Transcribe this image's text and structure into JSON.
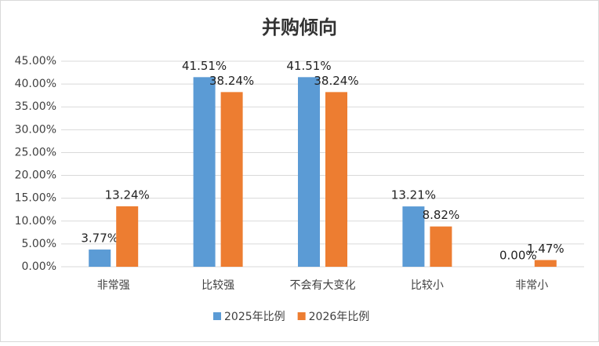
{
  "chart_data": {
    "type": "bar",
    "title": "并购倾向",
    "categories": [
      "非常强",
      "比较强",
      "不会有大变化",
      "比较小",
      "非常小"
    ],
    "series": [
      {
        "name": "2025年比例",
        "color": "#5b9bd5",
        "values": [
          3.77,
          41.51,
          41.51,
          13.21,
          0.0
        ],
        "value_labels": [
          "3.77%",
          "41.51%",
          "41.51%",
          "13.21%",
          "0.00%"
        ]
      },
      {
        "name": "2026年比例",
        "color": "#ed7d31",
        "values": [
          13.24,
          38.24,
          38.24,
          8.82,
          1.47
        ],
        "value_labels": [
          "13.24%",
          "38.24%",
          "38.24%",
          "8.82%",
          "1.47%"
        ]
      }
    ],
    "ylim": [
      0,
      45
    ],
    "yticks": [
      {
        "value": 0,
        "label": "0.00%"
      },
      {
        "value": 5,
        "label": "5.00%"
      },
      {
        "value": 10,
        "label": "10.00%"
      },
      {
        "value": 15,
        "label": "15.00%"
      },
      {
        "value": 20,
        "label": "20.00%"
      },
      {
        "value": 25,
        "label": "25.00%"
      },
      {
        "value": 30,
        "label": "30.00%"
      },
      {
        "value": 35,
        "label": "35.00%"
      },
      {
        "value": 40,
        "label": "40.00%"
      },
      {
        "value": 45,
        "label": "45.00%"
      }
    ],
    "grid": true
  }
}
